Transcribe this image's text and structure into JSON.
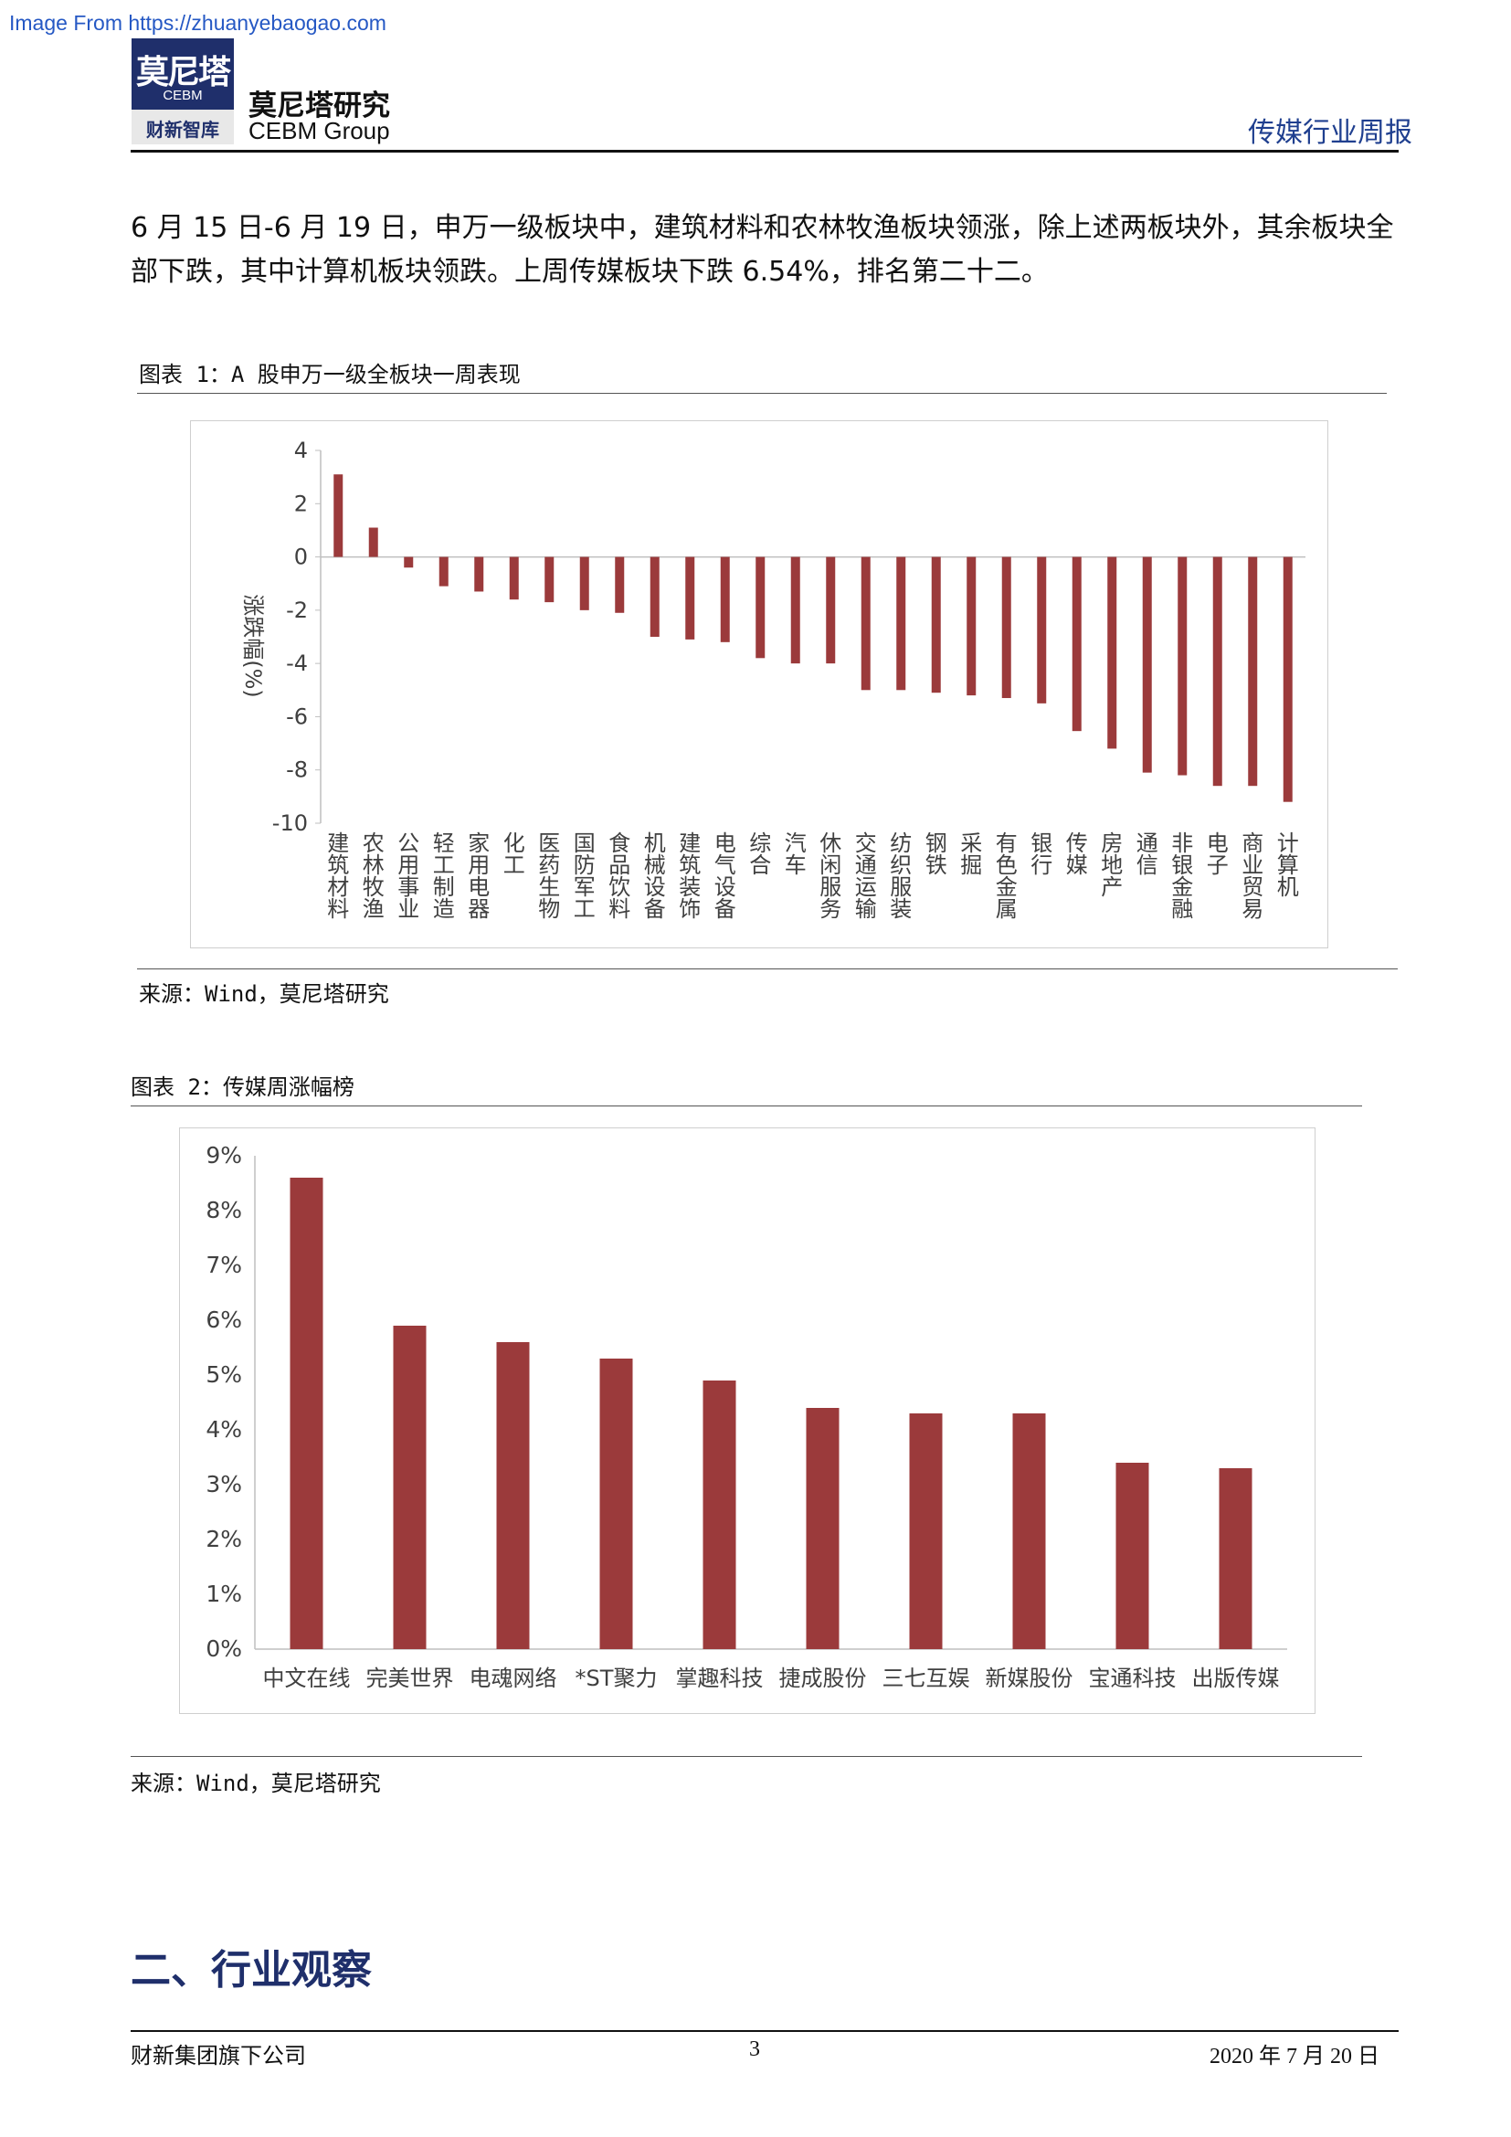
{
  "watermark": "Image From https://zhuanyebaogao.com",
  "header": {
    "logo_cn": "莫尼塔",
    "logo_en": "CEBM",
    "logo_sub": "财新智库",
    "brand_cn": "莫尼塔研究",
    "brand_en": "CEBM Group",
    "report_type": "传媒行业周报"
  },
  "intro_text": "6 月 15 日-6 月 19 日，申万一级板块中，建筑材料和农林牧渔板块领涨，除上述两板块外，其余板块全部下跌，其中计算机板块领跌。上周传媒板块下跌 6.54%，排名第二十二。",
  "figure1": {
    "title": "图表 1：A 股申万一级全板块一周表现",
    "source": "来源：Wind，莫尼塔研究"
  },
  "figure2": {
    "title": "图表 2：传媒周涨幅榜",
    "source": "来源：Wind，莫尼塔研究"
  },
  "section_heading": "二、行业观察",
  "footer": {
    "left": "财新集团旗下公司",
    "page": "3",
    "date": "2020 年 7 月 20 日"
  },
  "colors": {
    "bar": "#9b3a3b",
    "brand_navy": "#1f2f6b",
    "accent_blue": "#1f3f8f"
  },
  "chart_data": [
    {
      "type": "bar",
      "title": "",
      "ylabel": "涨跌幅(%)",
      "ylim": [
        -10,
        4
      ],
      "yticks": [
        4,
        2,
        0,
        -2,
        -4,
        -6,
        -8,
        -10
      ],
      "grid": false,
      "categories": [
        "建筑材料",
        "农林牧渔",
        "公用事业",
        "轻工制造",
        "家用电器",
        "化工",
        "医药生物",
        "国防军工",
        "食品饮料",
        "机械设备",
        "建筑装饰",
        "电气设备",
        "综合",
        "汽车",
        "休闲服务",
        "交通运输",
        "纺织服装",
        "钢铁",
        "采掘",
        "有色金属",
        "银行",
        "传媒",
        "房地产",
        "通信",
        "非银金融",
        "电子",
        "商业贸易",
        "计算机"
      ],
      "values": [
        3.1,
        1.1,
        -0.4,
        -1.1,
        -1.3,
        -1.6,
        -1.7,
        -2.0,
        -2.1,
        -3.0,
        -3.1,
        -3.2,
        -3.8,
        -4.0,
        -4.0,
        -5.0,
        -5.0,
        -5.1,
        -5.2,
        -5.3,
        -5.5,
        -6.54,
        -7.2,
        -8.1,
        -8.2,
        -8.6,
        -8.6,
        -9.2
      ]
    },
    {
      "type": "bar",
      "title": "",
      "ylim": [
        0,
        9
      ],
      "yticks": [
        "0%",
        "1%",
        "2%",
        "3%",
        "4%",
        "5%",
        "6%",
        "7%",
        "8%",
        "9%"
      ],
      "grid": false,
      "categories": [
        "中文在线",
        "完美世界",
        "电魂网络",
        "*ST聚力",
        "掌趣科技",
        "捷成股份",
        "三七互娱",
        "新媒股份",
        "宝通科技",
        "出版传媒"
      ],
      "values": [
        8.6,
        5.9,
        5.6,
        5.3,
        4.9,
        4.4,
        4.3,
        4.3,
        3.4,
        3.3
      ]
    }
  ]
}
